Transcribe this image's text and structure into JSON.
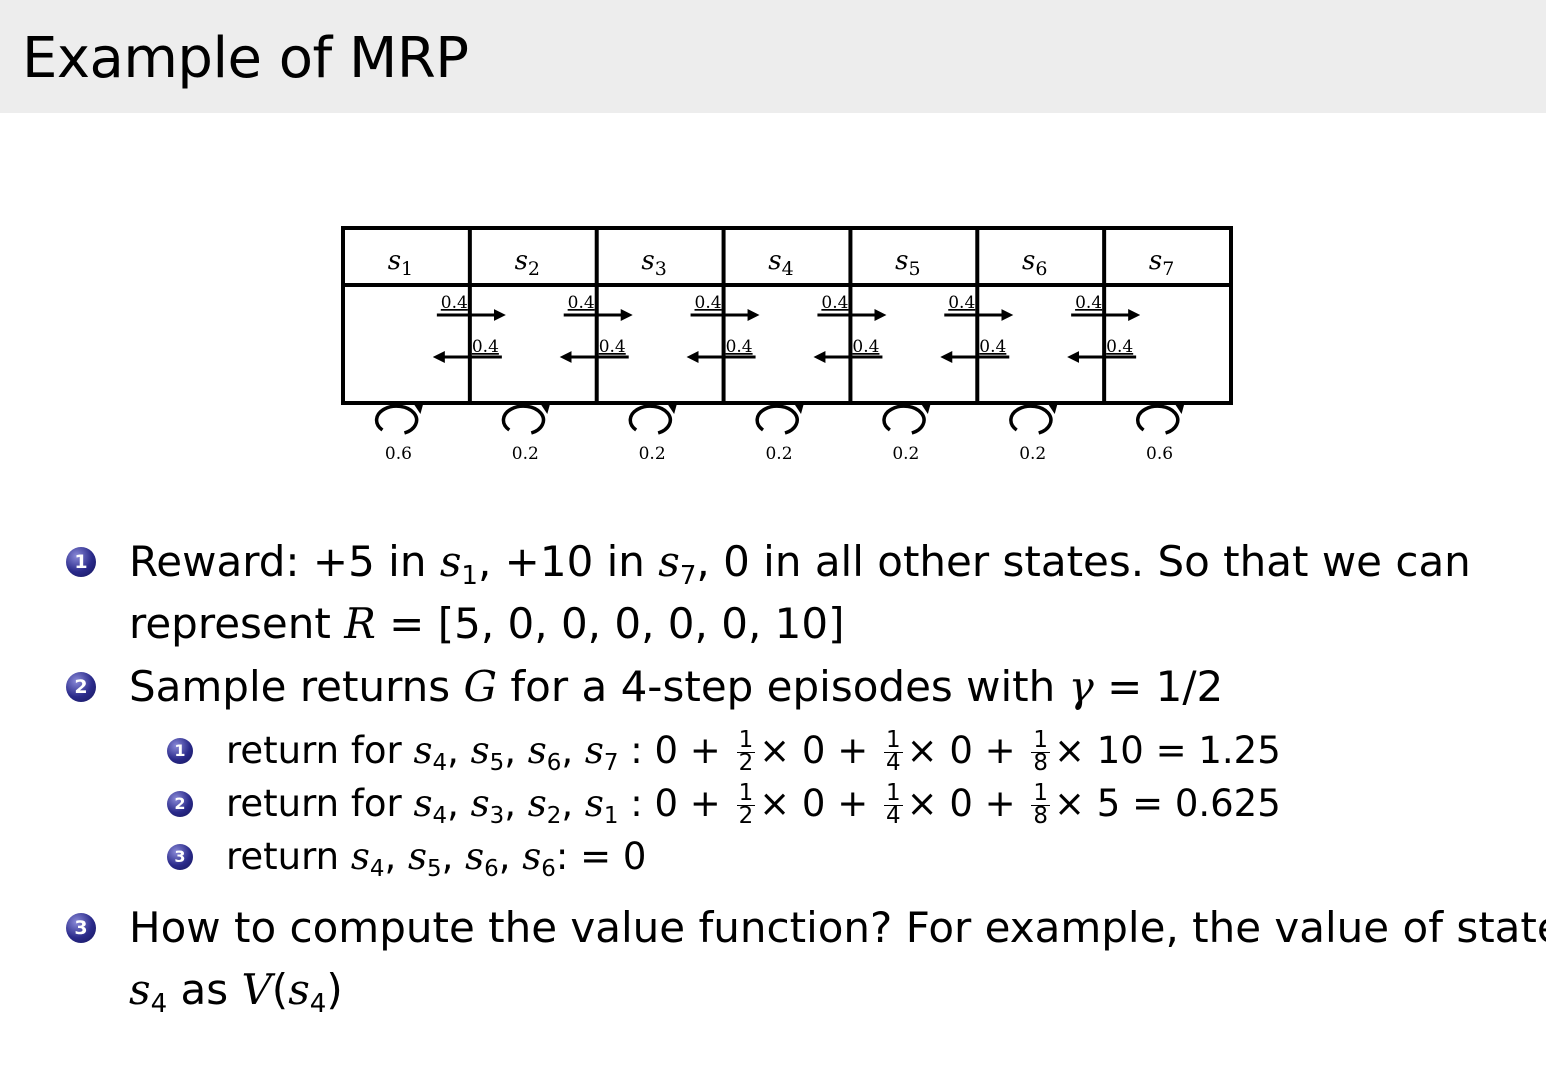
{
  "title": "Example of MRP",
  "diagram": {
    "states": [
      "s1",
      "s2",
      "s3",
      "s4",
      "s5",
      "s6",
      "s7"
    ],
    "right_probs": [
      "0.4",
      "0.4",
      "0.4",
      "0.4",
      "0.4",
      "0.4"
    ],
    "left_probs": [
      "0.4",
      "0.4",
      "0.4",
      "0.4",
      "0.4",
      "0.4"
    ],
    "self_loop_probs": [
      "0.6",
      "0.2",
      "0.2",
      "0.2",
      "0.2",
      "0.2",
      "0.6"
    ]
  },
  "bullets": [
    {
      "number": "1",
      "lines": [
        [
          {
            "t": "Reward: +5 in "
          },
          {
            "m": "s",
            "sub": "1"
          },
          {
            "t": ", +10 in "
          },
          {
            "m": "s",
            "sub": "7"
          },
          {
            "t": ", 0 in all other states. So that we can"
          }
        ],
        [
          {
            "t": "represent "
          },
          {
            "m": "R"
          },
          {
            "t": " = [5, 0, 0, 0, 0, 0, 10]"
          }
        ]
      ]
    },
    {
      "number": "2",
      "lines": [
        [
          {
            "t": "Sample returns "
          },
          {
            "m": "G"
          },
          {
            "t": " for a 4-step episodes with "
          },
          {
            "m": "γ"
          },
          {
            "t": " = 1/2"
          }
        ]
      ],
      "subitems": [
        {
          "number": "1",
          "line": [
            {
              "t": "return for "
            },
            {
              "m": "s",
              "sub": "4"
            },
            {
              "t": ", "
            },
            {
              "m": "s",
              "sub": "5"
            },
            {
              "t": ", "
            },
            {
              "m": "s",
              "sub": "6"
            },
            {
              "t": ", "
            },
            {
              "m": "s",
              "sub": "7"
            },
            {
              "t": " : 0 + "
            },
            {
              "frac": [
                "1",
                "2"
              ]
            },
            {
              "t": "× 0 + "
            },
            {
              "frac": [
                "1",
                "4"
              ]
            },
            {
              "t": "× 0 + "
            },
            {
              "frac": [
                "1",
                "8"
              ]
            },
            {
              "t": "× 10 = 1.25"
            }
          ]
        },
        {
          "number": "2",
          "line": [
            {
              "t": "return for "
            },
            {
              "m": "s",
              "sub": "4"
            },
            {
              "t": ", "
            },
            {
              "m": "s",
              "sub": "3"
            },
            {
              "t": ", "
            },
            {
              "m": "s",
              "sub": "2"
            },
            {
              "t": ", "
            },
            {
              "m": "s",
              "sub": "1"
            },
            {
              "t": " : 0 + "
            },
            {
              "frac": [
                "1",
                "2"
              ]
            },
            {
              "t": "× 0 + "
            },
            {
              "frac": [
                "1",
                "4"
              ]
            },
            {
              "t": "× 0 + "
            },
            {
              "frac": [
                "1",
                "8"
              ]
            },
            {
              "t": "× 5 = 0.625"
            }
          ]
        },
        {
          "number": "3",
          "line": [
            {
              "t": "return "
            },
            {
              "m": "s",
              "sub": "4"
            },
            {
              "t": ", "
            },
            {
              "m": "s",
              "sub": "5"
            },
            {
              "t": ", "
            },
            {
              "m": "s",
              "sub": "6"
            },
            {
              "t": ", "
            },
            {
              "m": "s",
              "sub": "6"
            },
            {
              "t": ":  = 0"
            }
          ]
        }
      ]
    },
    {
      "number": "3",
      "lines": [
        [
          {
            "t": "How to compute the value function? For example, the value of state"
          }
        ],
        [
          {
            "m": "s",
            "sub": "4"
          },
          {
            "t": " as "
          },
          {
            "m": "V"
          },
          {
            "t": "("
          },
          {
            "m": "s",
            "sub": "4"
          },
          {
            "t": ")"
          }
        ]
      ]
    }
  ]
}
